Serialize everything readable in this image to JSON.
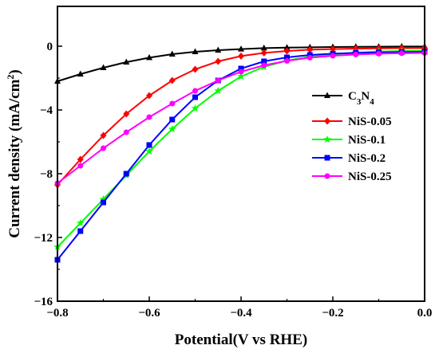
{
  "chart_data": {
    "type": "line",
    "xlabel": "Potential(V  vs RHE)",
    "ylabel": "Current density (mA/cm",
    "ylabel_sup": "2",
    "ylabel_close": ")",
    "xlim": [
      -0.8,
      0.0
    ],
    "ylim": [
      -16,
      2.5
    ],
    "xticks": [
      -0.8,
      -0.6,
      -0.4,
      -0.2,
      0.0
    ],
    "xtick_labels": [
      "−0.8",
      "−0.6",
      "−0.4",
      "−0.2",
      "0.0"
    ],
    "yticks": [
      0,
      -4,
      -8,
      -12,
      -16
    ],
    "ytick_labels": [
      "0",
      "−4",
      "−8",
      "−12",
      "−16"
    ],
    "grid": false,
    "legend_position": "right",
    "series": [
      {
        "name": "C3N4",
        "label_main": "C",
        "label_sub1": "3",
        "label_mid": "N",
        "label_sub2": "4",
        "color": "#000000",
        "marker": "triangle",
        "points": [
          [
            -0.8,
            -2.2
          ],
          [
            -0.75,
            -1.75
          ],
          [
            -0.7,
            -1.35
          ],
          [
            -0.65,
            -1.0
          ],
          [
            -0.6,
            -0.72
          ],
          [
            -0.55,
            -0.5
          ],
          [
            -0.5,
            -0.35
          ],
          [
            -0.45,
            -0.25
          ],
          [
            -0.4,
            -0.18
          ],
          [
            -0.35,
            -0.12
          ],
          [
            -0.3,
            -0.09
          ],
          [
            -0.25,
            -0.07
          ],
          [
            -0.2,
            -0.05
          ],
          [
            -0.15,
            -0.04
          ],
          [
            -0.1,
            -0.03
          ],
          [
            -0.05,
            -0.02
          ],
          [
            0.0,
            -0.02
          ]
        ]
      },
      {
        "name": "NiS-0.05",
        "color": "#ff0000",
        "marker": "diamond",
        "points": [
          [
            -0.8,
            -8.7
          ],
          [
            -0.75,
            -7.1
          ],
          [
            -0.7,
            -5.6
          ],
          [
            -0.65,
            -4.25
          ],
          [
            -0.6,
            -3.1
          ],
          [
            -0.55,
            -2.15
          ],
          [
            -0.5,
            -1.45
          ],
          [
            -0.45,
            -0.95
          ],
          [
            -0.4,
            -0.62
          ],
          [
            -0.35,
            -0.42
          ],
          [
            -0.3,
            -0.3
          ],
          [
            -0.25,
            -0.22
          ],
          [
            -0.2,
            -0.18
          ],
          [
            -0.15,
            -0.15
          ],
          [
            -0.1,
            -0.13
          ],
          [
            -0.05,
            -0.12
          ],
          [
            0.0,
            -0.11
          ]
        ]
      },
      {
        "name": "NiS-0.1",
        "color": "#00ff00",
        "marker": "star",
        "points": [
          [
            -0.8,
            -12.6
          ],
          [
            -0.75,
            -11.1
          ],
          [
            -0.7,
            -9.6
          ],
          [
            -0.65,
            -8.1
          ],
          [
            -0.6,
            -6.6
          ],
          [
            -0.55,
            -5.2
          ],
          [
            -0.5,
            -3.9
          ],
          [
            -0.45,
            -2.8
          ],
          [
            -0.4,
            -1.9
          ],
          [
            -0.35,
            -1.3
          ],
          [
            -0.3,
            -0.9
          ],
          [
            -0.25,
            -0.65
          ],
          [
            -0.2,
            -0.5
          ],
          [
            -0.15,
            -0.4
          ],
          [
            -0.1,
            -0.34
          ],
          [
            -0.05,
            -0.3
          ],
          [
            0.0,
            -0.28
          ]
        ]
      },
      {
        "name": "NiS-0.2",
        "color": "#0000ff",
        "marker": "square",
        "points": [
          [
            -0.8,
            -13.4
          ],
          [
            -0.75,
            -11.6
          ],
          [
            -0.7,
            -9.8
          ],
          [
            -0.65,
            -8.0
          ],
          [
            -0.6,
            -6.2
          ],
          [
            -0.55,
            -4.6
          ],
          [
            -0.5,
            -3.2
          ],
          [
            -0.45,
            -2.15
          ],
          [
            -0.4,
            -1.4
          ],
          [
            -0.35,
            -0.95
          ],
          [
            -0.3,
            -0.7
          ],
          [
            -0.25,
            -0.55
          ],
          [
            -0.2,
            -0.47
          ],
          [
            -0.15,
            -0.42
          ],
          [
            -0.1,
            -0.39
          ],
          [
            -0.05,
            -0.37
          ],
          [
            0.0,
            -0.35
          ]
        ]
      },
      {
        "name": "NiS-0.25",
        "color": "#ff00ff",
        "marker": "circle",
        "points": [
          [
            -0.8,
            -8.6
          ],
          [
            -0.75,
            -7.5
          ],
          [
            -0.7,
            -6.4
          ],
          [
            -0.65,
            -5.4
          ],
          [
            -0.6,
            -4.45
          ],
          [
            -0.55,
            -3.6
          ],
          [
            -0.5,
            -2.8
          ],
          [
            -0.45,
            -2.15
          ],
          [
            -0.4,
            -1.6
          ],
          [
            -0.35,
            -1.2
          ],
          [
            -0.3,
            -0.92
          ],
          [
            -0.25,
            -0.72
          ],
          [
            -0.2,
            -0.6
          ],
          [
            -0.15,
            -0.52
          ],
          [
            -0.1,
            -0.47
          ],
          [
            -0.05,
            -0.44
          ],
          [
            0.0,
            -0.42
          ]
        ]
      }
    ]
  }
}
